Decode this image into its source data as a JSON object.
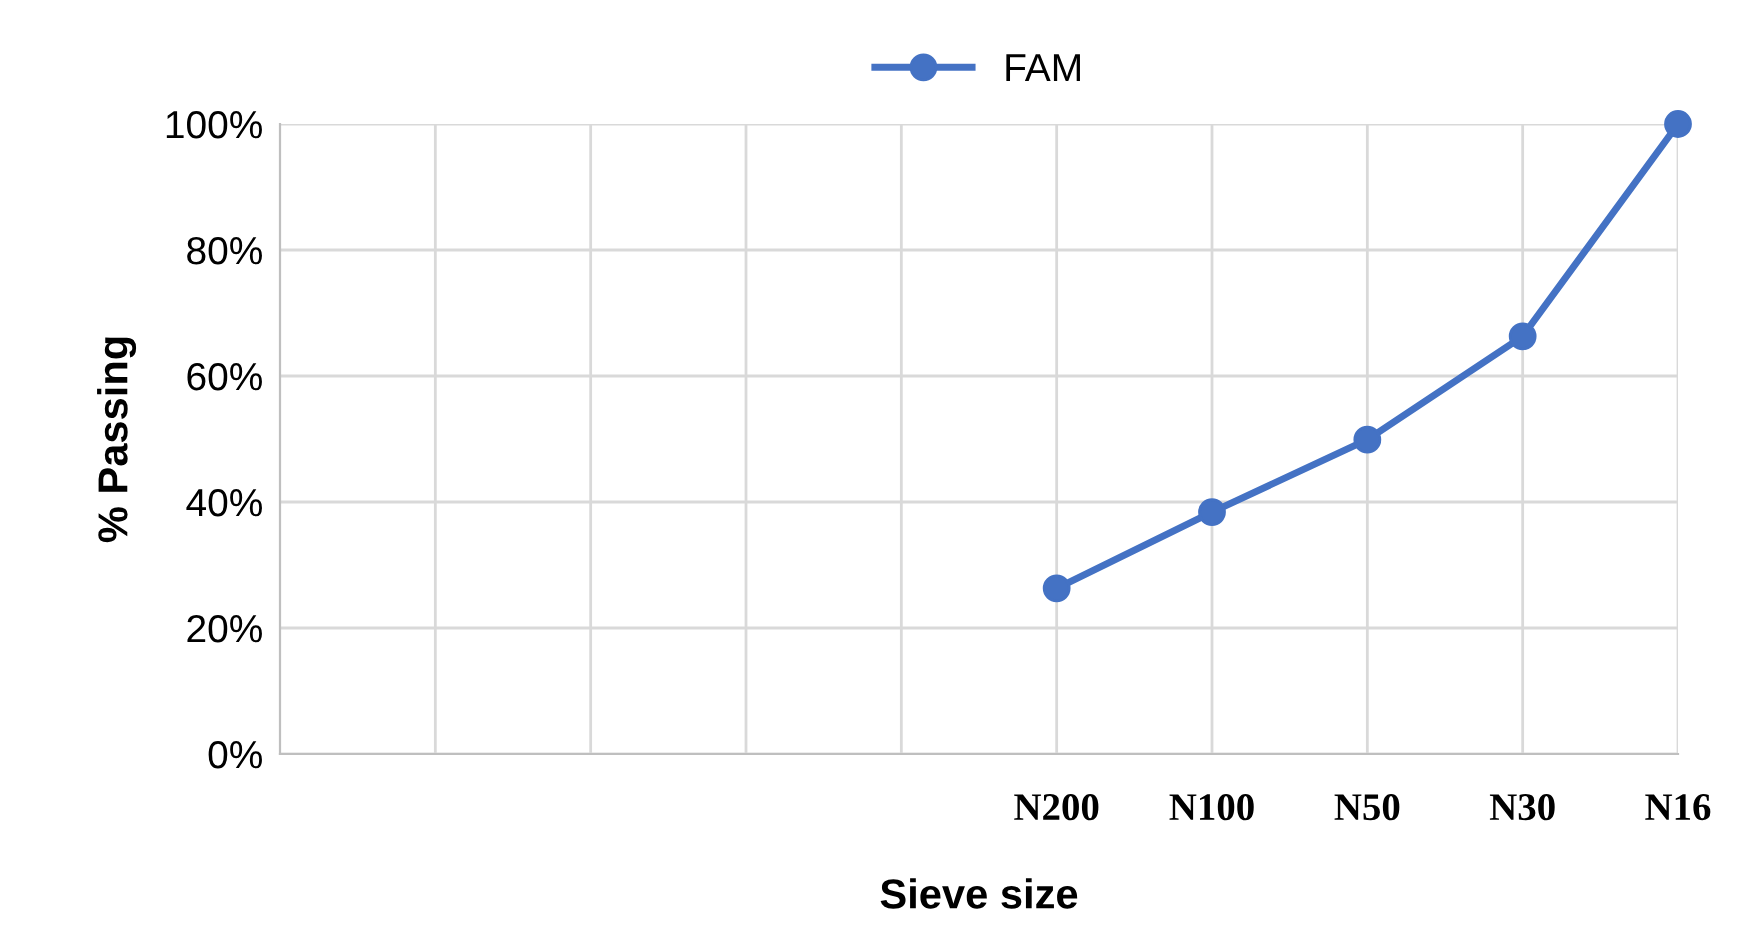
{
  "chart_data": {
    "type": "line",
    "xlabel": "Sieve size",
    "ylabel": "% Passing",
    "categories": [
      null,
      null,
      null,
      null,
      "N200",
      "N100",
      "N50",
      "N30",
      "N16"
    ],
    "series": [
      {
        "name": "FAM",
        "color": "#4472c4",
        "values": [
          null,
          null,
          null,
          null,
          26.3,
          38.4,
          49.9,
          66.3,
          100
        ]
      }
    ],
    "ylim": [
      0,
      100
    ],
    "yticks": [
      {
        "value": 0,
        "label": "0%"
      },
      {
        "value": 20,
        "label": "20%"
      },
      {
        "value": 40,
        "label": "40%"
      },
      {
        "value": 60,
        "label": "60%"
      },
      {
        "value": 80,
        "label": "80%"
      },
      {
        "value": 100,
        "label": "100%"
      }
    ],
    "grid": true,
    "legend": "top",
    "marker": "circle",
    "line_style": "solid"
  }
}
